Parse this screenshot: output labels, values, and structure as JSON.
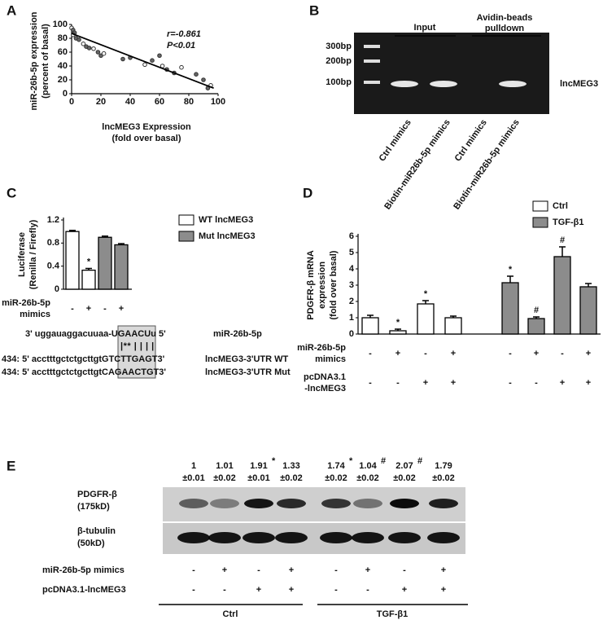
{
  "panels": [
    "A",
    "B",
    "C",
    "D",
    "E"
  ],
  "chart_data": [
    {
      "type": "scatter",
      "x_label": [
        "lncMEG3 Expression",
        "(fold over basal)"
      ],
      "y_label": [
        "miR-26b-5p expression",
        "(percent of basal)"
      ],
      "annotations": [
        "r=-0.861",
        "P<0.01"
      ],
      "x": [
        0,
        1,
        2,
        1,
        3,
        5,
        8,
        10,
        12,
        15,
        18,
        20,
        22,
        35,
        40,
        50,
        55,
        60,
        62,
        65,
        70,
        75,
        85,
        90,
        95,
        93
      ],
      "y": [
        95,
        92,
        88,
        85,
        80,
        78,
        72,
        68,
        66,
        65,
        60,
        55,
        58,
        50,
        52,
        42,
        48,
        55,
        40,
        35,
        30,
        38,
        28,
        20,
        12,
        8
      ],
      "fit": {
        "x": [
          0,
          97
        ],
        "y": [
          87,
          8
        ]
      },
      "xlim": [
        0,
        100
      ],
      "ylim": [
        0,
        100
      ],
      "xticks": [
        0,
        20,
        40,
        60,
        80,
        100
      ],
      "yticks": [
        0,
        20,
        40,
        60,
        80,
        100
      ]
    },
    {
      "type": "bar",
      "y_label": [
        "Luciferase",
        "(Renilla / Firefly)"
      ],
      "categories": [
        null,
        null,
        null,
        null
      ],
      "series": [
        {
          "name": "WT lncMEG3",
          "color": "#ffffff",
          "values": [
            1.0,
            0.33,
            null,
            null
          ],
          "errors": [
            0.02,
            0.03,
            null,
            null
          ],
          "marks": [
            null,
            "*",
            null,
            null
          ]
        },
        {
          "name": "Mut lncMEG3",
          "color": "#8c8c8c",
          "values": [
            null,
            null,
            0.9,
            0.77
          ],
          "errors": [
            null,
            null,
            0.02,
            0.02
          ],
          "marks": [
            null,
            null,
            null,
            null
          ]
        }
      ],
      "rows": [
        {
          "label": [
            "miR-26b-5p",
            "mimics"
          ],
          "signs": [
            "-",
            "+",
            "-",
            "+"
          ]
        }
      ],
      "ylim": [
        0,
        1.2
      ],
      "yticks": [
        0,
        0.4,
        0.8,
        1.2
      ]
    },
    {
      "type": "bar",
      "y_label": [
        "PDGFR-β mRNA",
        "expression",
        "(fold over basal)"
      ],
      "categories": [
        null,
        null,
        null,
        null,
        null,
        null,
        null,
        null
      ],
      "series": [
        {
          "name": "Ctrl",
          "color": "#ffffff",
          "values": [
            1.0,
            0.2,
            1.85,
            1.0,
            null,
            null,
            null,
            null
          ],
          "errors": [
            0.15,
            0.1,
            0.2,
            0.1,
            null,
            null,
            null,
            null
          ],
          "marks": [
            null,
            "*",
            "*",
            null,
            null,
            null,
            null,
            null
          ]
        },
        {
          "name": "TGF-β1",
          "color": "#8c8c8c",
          "values": [
            null,
            null,
            null,
            null,
            3.15,
            0.95,
            4.75,
            2.9
          ],
          "errors": [
            null,
            null,
            null,
            null,
            0.4,
            0.1,
            0.6,
            0.2
          ],
          "marks": [
            null,
            null,
            null,
            null,
            "*",
            "#",
            "#",
            null
          ]
        }
      ],
      "rows": [
        {
          "label": [
            "miR-26b-5p",
            "mimics"
          ],
          "signs": [
            "-",
            "+",
            "-",
            "+",
            "-",
            "+",
            "-",
            "+"
          ]
        },
        {
          "label": [
            "pcDNA3.1",
            "-lncMEG3"
          ],
          "signs": [
            "-",
            "-",
            "+",
            "+",
            "-",
            "-",
            "+",
            "+"
          ]
        }
      ],
      "ylim": [
        0,
        6
      ],
      "yticks": [
        0,
        1,
        2,
        3,
        4,
        5,
        6
      ]
    }
  ],
  "gel": {
    "ladder": [
      "300bp",
      "200bp",
      "100bp"
    ],
    "groups": [
      "Input",
      [
        "Avidin-beads",
        "pulldown"
      ]
    ],
    "band_label": "lncMEG3",
    "lanes": [
      "Ctrl mimics",
      "Biotin-miR26b-5p mimics",
      "Ctrl mimics",
      "Biotin-miR26b-5p mimics"
    ]
  },
  "sequence": {
    "lines": [
      {
        "text": "3' uggauaggacuuaa-UGAACUu 5'",
        "label": "miR-26b-5p"
      },
      {
        "text": "|** | | | |",
        "label": null
      },
      {
        "text": "434: 5' acctttgctctgcttgtGTCTTGAGT3'",
        "label": "lncMEG3-3'UTR WT"
      },
      {
        "text": "434: 5' acctttgctctgcttgtCAGAACTGT3'",
        "label": "lncMEG3-3'UTR Mut"
      }
    ]
  },
  "blot": {
    "means": [
      "1",
      "1.01",
      "1.91",
      "1.33",
      "1.74",
      "1.04",
      "2.07",
      "1.79"
    ],
    "sds": [
      "±0.01",
      "±0.02",
      "±0.01",
      "±0.02",
      "±0.02",
      "±0.02",
      "±0.02",
      "±0.02"
    ],
    "marks": [
      null,
      null,
      "*",
      null,
      "*",
      "#",
      "#",
      null
    ],
    "bands": [
      [
        "PDGFR-β",
        "(175kD)"
      ],
      [
        "β-tubulin",
        "(50kD)"
      ]
    ],
    "rows": [
      {
        "label": "miR-26b-5p mimics",
        "signs": [
          "-",
          "+",
          "-",
          "+",
          "-",
          "+",
          "-",
          "+"
        ]
      },
      {
        "label": "pcDNA3.1-lncMEG3",
        "signs": [
          "-",
          "-",
          "+",
          "+",
          "-",
          "-",
          "+",
          "+"
        ]
      }
    ],
    "groups": [
      "Ctrl",
      "TGF-β1"
    ]
  }
}
